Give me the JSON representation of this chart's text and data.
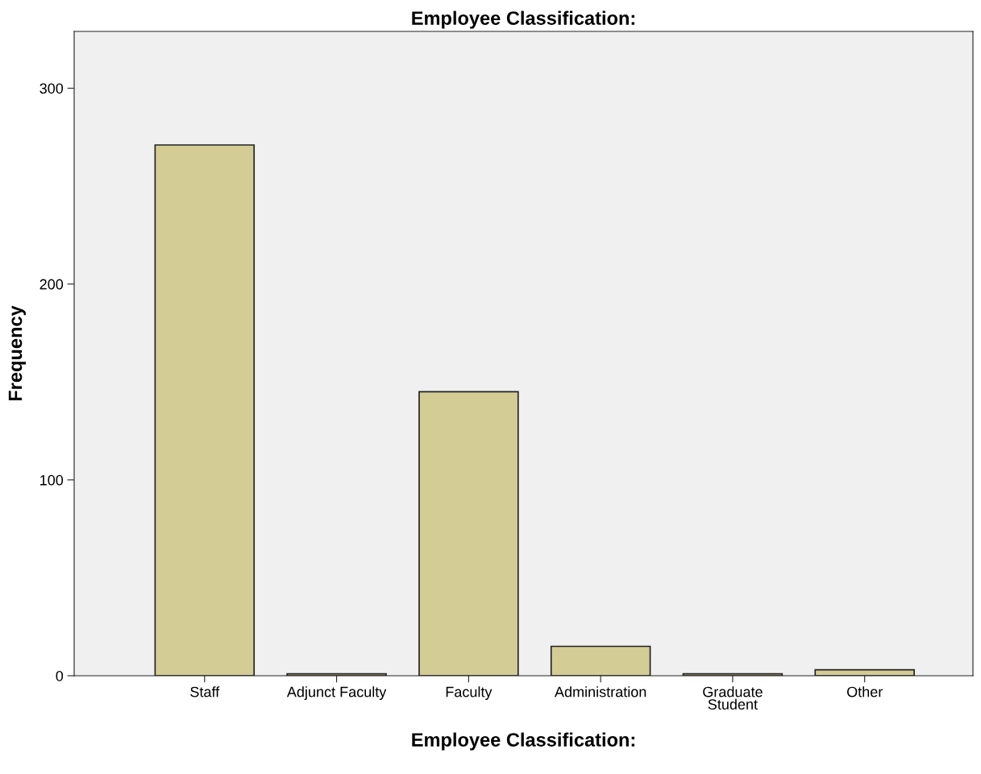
{
  "chart_data": {
    "type": "bar",
    "title": "Employee Classification:",
    "xlabel": "Employee Classification:",
    "ylabel": "Frequency",
    "categories": [
      "Staff",
      "Adjunct Faculty",
      "Faculty",
      "Administration",
      "Graduate\nStudent",
      "Other"
    ],
    "values": [
      271,
      1,
      145,
      15,
      1,
      3
    ],
    "color": "#d3cd95",
    "ylim": [
      0,
      329
    ],
    "yticks": [
      0,
      100,
      200,
      300
    ],
    "grid": false,
    "legend": false
  }
}
